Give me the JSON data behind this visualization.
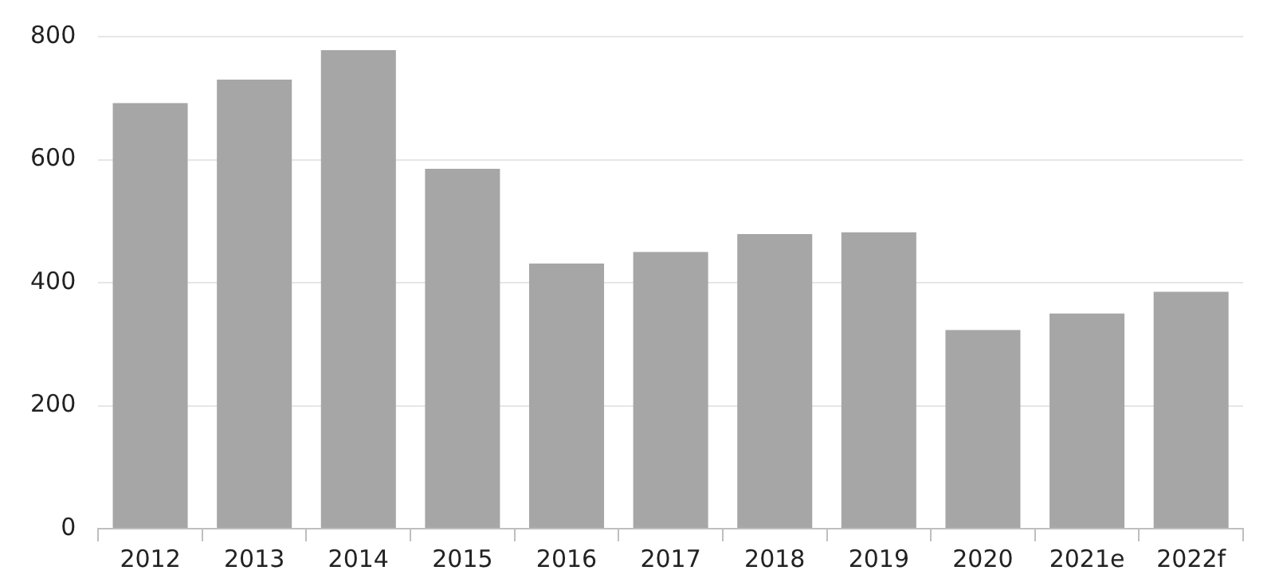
{
  "chart_data": {
    "type": "bar",
    "categories": [
      "2012",
      "2013",
      "2014",
      "2015",
      "2016",
      "2017",
      "2018",
      "2019",
      "2020",
      "2021e",
      "2022f"
    ],
    "values": [
      692,
      730,
      778,
      585,
      431,
      450,
      479,
      482,
      323,
      350,
      385
    ],
    "color": "#a6a6a6",
    "ylim": [
      0,
      800
    ],
    "yticks": [
      0,
      200,
      400,
      600,
      800
    ],
    "grid": "y",
    "legend": false
  }
}
